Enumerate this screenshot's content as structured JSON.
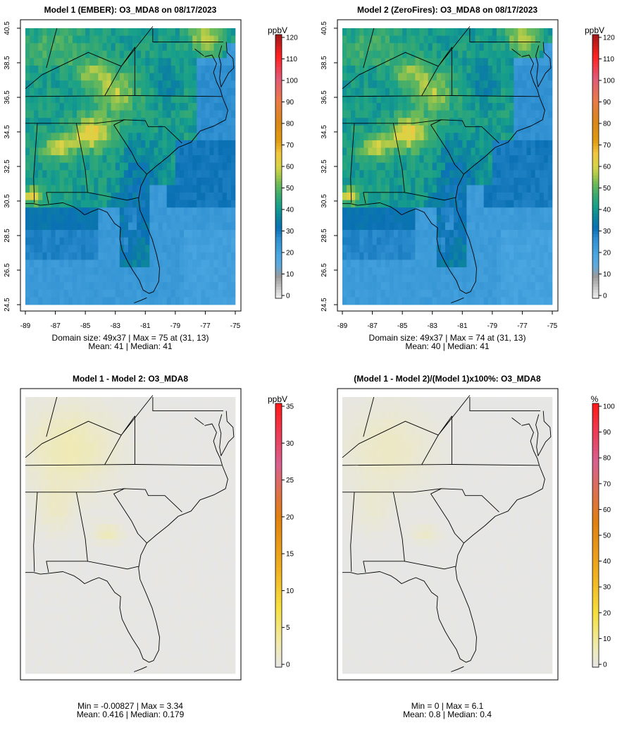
{
  "chart_data": [
    {
      "type": "heatmap",
      "title": "Model 1 (EMBER): O3_MDA8 on 08/17/2023",
      "x_ticks": [
        "-89",
        "-87",
        "-85",
        "-83",
        "-81",
        "-79",
        "-77",
        "-75"
      ],
      "y_ticks": [
        "24.5",
        "26.5",
        "28.5",
        "30.5",
        "32.5",
        "34.5",
        "36.5",
        "38.5",
        "40.5"
      ],
      "xlim": [
        -89,
        -75
      ],
      "ylim": [
        24.5,
        40.5
      ],
      "colorbar": {
        "unit": "ppbV",
        "ticks": [
          "0",
          "10",
          "20",
          "30",
          "40",
          "50",
          "60",
          "70",
          "80",
          "90",
          "100",
          "110",
          "120"
        ],
        "range": [
          0,
          120
        ]
      },
      "stats": [
        "Domain size: 49x37 | Max = 75 at (31, 13)",
        "Mean: 41 |  Median: 41"
      ],
      "grid": {
        "cols": 49,
        "rows": 37,
        "max": 75,
        "max_cell": [
          31,
          13
        ],
        "mean": 41,
        "median": 41
      }
    },
    {
      "type": "heatmap",
      "title": "Model 2 (ZeroFires): O3_MDA8 on 08/17/2023",
      "x_ticks": [
        "-89",
        "-87",
        "-85",
        "-83",
        "-81",
        "-79",
        "-77",
        "-75"
      ],
      "y_ticks": [
        "24.5",
        "26.5",
        "28.5",
        "30.5",
        "32.5",
        "34.5",
        "36.5",
        "38.5",
        "40.5"
      ],
      "xlim": [
        -89,
        -75
      ],
      "ylim": [
        24.5,
        40.5
      ],
      "colorbar": {
        "unit": "ppbV",
        "ticks": [
          "0",
          "10",
          "20",
          "30",
          "40",
          "50",
          "60",
          "70",
          "80",
          "90",
          "100",
          "110",
          "120"
        ],
        "range": [
          0,
          120
        ]
      },
      "stats": [
        "Domain size: 49x37 | Max = 74 at (31, 13)",
        "Mean: 40 |  Median: 41"
      ],
      "grid": {
        "cols": 49,
        "rows": 37,
        "max": 74,
        "max_cell": [
          31,
          13
        ],
        "mean": 40,
        "median": 41
      }
    },
    {
      "type": "heatmap",
      "title": "Model 1 - Model 2: O3_MDA8",
      "colorbar": {
        "unit": "ppbV",
        "ticks": [
          "0",
          "5",
          "10",
          "15",
          "20",
          "25",
          "30",
          "35"
        ],
        "range": [
          0,
          35
        ]
      },
      "stats": [
        "Min = -0.00827 | Max = 3.34",
        "Mean: 0.416 |  Median: 0.179"
      ],
      "grid": {
        "min": -0.00827,
        "max": 3.34,
        "mean": 0.416,
        "median": 0.179
      }
    },
    {
      "type": "heatmap",
      "title": "(Model 1 - Model 2)/(Model 1)x100%: O3_MDA8",
      "colorbar": {
        "unit": "%",
        "ticks": [
          "0",
          "10",
          "20",
          "30",
          "40",
          "50",
          "60",
          "70",
          "80",
          "90",
          "100"
        ],
        "range": [
          0,
          100
        ]
      },
      "stats": [
        "Min = 0 | Max = 6.1",
        "Mean: 0.8 |  Median: 0.4"
      ],
      "grid": {
        "min": 0,
        "max": 6.1,
        "mean": 0.8,
        "median": 0.4
      }
    }
  ]
}
